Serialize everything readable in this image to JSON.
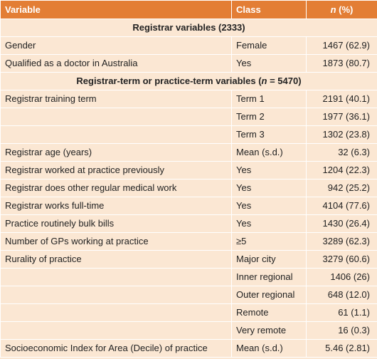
{
  "table": {
    "headers": {
      "variable": "Variable",
      "class": "Class",
      "n_italic": "n",
      "n_rest": " (%)"
    },
    "sections": [
      {
        "title_before": "Registrar variables (2333)",
        "rows": [
          {
            "variable": "Gender",
            "class": "Female",
            "value": "1467 (62.9)"
          },
          {
            "variable": "Qualified as a doctor in Australia",
            "class": "Yes",
            "value": "1873 (80.7)"
          }
        ]
      },
      {
        "title_before": "Registrar-term or practice-term variables (",
        "title_italic": "n",
        "title_after": " = 5470)",
        "rows": [
          {
            "variable": "Registrar training term",
            "class": "Term 1",
            "value": "2191 (40.1)"
          },
          {
            "variable": "",
            "class": "Term 2",
            "value": "1977 (36.1)"
          },
          {
            "variable": "",
            "class": "Term 3",
            "value": "1302 (23.8)"
          },
          {
            "variable": "Registrar age (years)",
            "class": "Mean (s.d.)",
            "value": "32 (6.3)"
          },
          {
            "variable": "Registrar worked at practice previously",
            "class": "Yes",
            "value": "1204 (22.3)"
          },
          {
            "variable": "Registrar does other regular medical work",
            "class": "Yes",
            "value": "942 (25.2)"
          },
          {
            "variable": "Registrar works full-time",
            "class": "Yes",
            "value": "4104 (77.6)"
          },
          {
            "variable": "Practice routinely bulk bills",
            "class": "Yes",
            "value": "1430 (26.4)"
          },
          {
            "variable": "Number of GPs working at practice",
            "class": "≥5",
            "value": "3289 (62.3)"
          },
          {
            "variable": "Rurality of practice",
            "class": "Major city",
            "value": "3279 (60.6)"
          },
          {
            "variable": "",
            "class": "Inner regional",
            "value": "1406 (26)"
          },
          {
            "variable": "",
            "class": "Outer regional",
            "value": "648 (12.0)"
          },
          {
            "variable": "",
            "class": "Remote",
            "value": "61 (1.1)"
          },
          {
            "variable": "",
            "class": "Very remote",
            "value": "16 (0.3)"
          },
          {
            "variable": "Socioeconomic Index for Area (Decile) of practice",
            "class": "Mean (s.d.)",
            "value": "5.46 (2.81)"
          }
        ]
      }
    ]
  }
}
